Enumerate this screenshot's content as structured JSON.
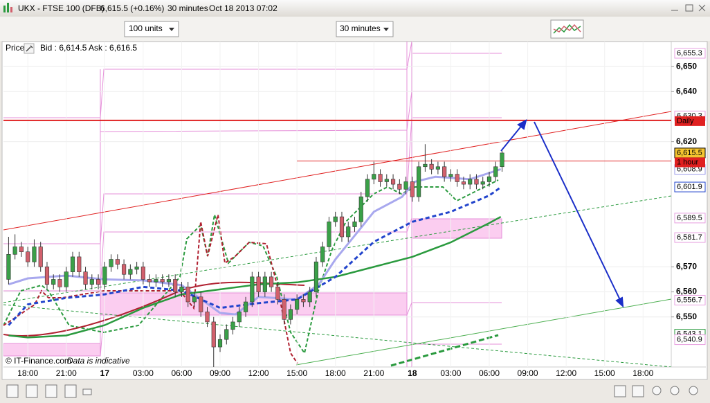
{
  "window": {
    "title": "UKX - FTSE 100 (DFB)",
    "price": "6,615.5 (+0.16%)",
    "interval": "30 minutes",
    "timestamp": "Oct 18 2013 07:02"
  },
  "toolbar": {
    "units": "100 units",
    "period": "30 minutes"
  },
  "panel": {
    "label": "Price",
    "quote": "Bid : 6,614.5 Ask : 6,616.5",
    "copyright": "© IT-Finance.com",
    "disclaimer": "Data is indicative"
  },
  "chart_data": {
    "type": "candlestick",
    "x": [
      -1.5,
      -1,
      -0.5,
      0,
      0.5,
      1,
      1.5,
      2,
      2.5,
      3,
      3.5,
      4,
      4.5,
      5,
      5.5,
      6,
      6.5,
      7,
      7.5,
      8,
      8.5,
      9,
      9.5,
      10,
      10.5,
      11,
      11.5,
      12,
      12.5,
      13,
      13.5,
      14,
      14.5,
      15,
      15.5,
      16,
      16.5,
      17,
      17.5,
      18,
      18.5,
      19,
      19.5,
      20,
      20.5,
      21,
      21.5,
      22,
      22.5,
      23,
      23.5,
      24,
      24.5,
      25,
      25.5,
      26,
      26.5,
      27,
      27.5,
      28,
      28.5,
      29,
      29.5,
      30,
      30.5,
      31,
      31.5,
      32,
      32.5,
      33,
      33.5,
      34,
      34.5,
      35,
      35.5,
      36,
      36.5,
      37
    ],
    "open": [
      6565,
      6575,
      6578,
      6576,
      6572,
      6578,
      6570,
      6563,
      6565,
      6562,
      6568,
      6574,
      6568,
      6563,
      6565,
      6563,
      6570,
      6573,
      6571,
      6567,
      6569,
      6570,
      6565,
      6564,
      6565,
      6564,
      6565,
      6560,
      6562,
      6556,
      6558,
      6552,
      6548,
      6538,
      6541,
      6545,
      6548,
      6552,
      6556,
      6566,
      6560,
      6566,
      6562,
      6557,
      6549,
      6553,
      6557,
      6556,
      6560,
      6572,
      6578,
      6588,
      6590,
      6582,
      6586,
      6588,
      6598,
      6605,
      6607,
      6604,
      6605,
      6603,
      6601,
      6604,
      6598,
      6610,
      6611,
      6609,
      6610,
      6606,
      6607,
      6604,
      6603,
      6605,
      6603,
      6604,
      6606,
      6610
    ],
    "high": [
      6582,
      6583,
      6580,
      6578,
      6581,
      6580,
      6572,
      6567,
      6567,
      6570,
      6576,
      6576,
      6570,
      6567,
      6567,
      6572,
      6575,
      6575,
      6573,
      6571,
      6572,
      6572,
      6567,
      6567,
      6567,
      6567,
      6567,
      6564,
      6564,
      6560,
      6560,
      6554,
      6550,
      6543,
      6547,
      6550,
      6554,
      6558,
      6568,
      6568,
      6568,
      6568,
      6564,
      6559,
      6555,
      6559,
      6559,
      6562,
      6574,
      6580,
      6590,
      6592,
      6592,
      6588,
      6590,
      6600,
      6607,
      6612,
      6609,
      6607,
      6607,
      6605,
      6606,
      6606,
      6612,
      6619,
      6613,
      6612,
      6612,
      6609,
      6609,
      6606,
      6607,
      6607,
      6606,
      6608,
      6612,
      6617
    ],
    "low": [
      6563,
      6573,
      6574,
      6570,
      6570,
      6568,
      6561,
      6561,
      6560,
      6560,
      6566,
      6566,
      6561,
      6561,
      6561,
      6561,
      6568,
      6569,
      6565,
      6565,
      6567,
      6563,
      6562,
      6562,
      6562,
      6562,
      6558,
      6558,
      6554,
      6554,
      6550,
      6546,
      6530,
      6536,
      6539,
      6543,
      6546,
      6550,
      6554,
      6558,
      6558,
      6560,
      6555,
      6547,
      6547,
      6551,
      6554,
      6554,
      6558,
      6570,
      6576,
      6586,
      6580,
      6580,
      6584,
      6586,
      6596,
      6603,
      6602,
      6602,
      6601,
      6599,
      6599,
      6596,
      6596,
      6608,
      6607,
      6607,
      6604,
      6604,
      6602,
      6601,
      6601,
      6601,
      6601,
      6602,
      6604,
      6608
    ],
    "close": [
      6575,
      6578,
      6576,
      6572,
      6578,
      6570,
      6563,
      6565,
      6562,
      6568,
      6574,
      6568,
      6563,
      6565,
      6563,
      6570,
      6573,
      6571,
      6567,
      6569,
      6570,
      6565,
      6564,
      6565,
      6564,
      6565,
      6560,
      6562,
      6556,
      6558,
      6552,
      6548,
      6538,
      6541,
      6545,
      6548,
      6552,
      6556,
      6566,
      6560,
      6566,
      6562,
      6557,
      6549,
      6553,
      6557,
      6556,
      6560,
      6572,
      6578,
      6588,
      6590,
      6582,
      6586,
      6588,
      6598,
      6605,
      6607,
      6604,
      6605,
      6603,
      6601,
      6604,
      6598,
      6610,
      6611,
      6609,
      6610,
      6606,
      6607,
      6604,
      6603,
      6605,
      6603,
      6604,
      6606,
      6610,
      6615.5
    ],
    "up_color": "#3aa048",
    "down_color": "#d2606c",
    "xlim": [
      -1.9,
      50.2
    ],
    "ylim": [
      6530,
      6660
    ],
    "xticks": [
      {
        "value": 0,
        "label": "18:00"
      },
      {
        "value": 3,
        "label": "21:00"
      },
      {
        "value": 6,
        "label": "17"
      },
      {
        "value": 9,
        "label": "03:00"
      },
      {
        "value": 12,
        "label": "06:00"
      },
      {
        "value": 15,
        "label": "09:00"
      },
      {
        "value": 18,
        "label": "12:00"
      },
      {
        "value": 21,
        "label": "15:00"
      },
      {
        "value": 24,
        "label": "18:00"
      },
      {
        "value": 27,
        "label": "21:00"
      },
      {
        "value": 30,
        "label": "18"
      },
      {
        "value": 33,
        "label": "03:00"
      },
      {
        "value": 36,
        "label": "06:00"
      },
      {
        "value": 39,
        "label": "09:00"
      },
      {
        "value": 42,
        "label": "12:00"
      },
      {
        "value": 45,
        "label": "15:00"
      },
      {
        "value": 48,
        "label": "18:00"
      }
    ],
    "yticks": [
      {
        "value": 6650,
        "label": "6,650"
      },
      {
        "value": 6640,
        "label": "6,640"
      },
      {
        "value": 6620,
        "label": "6,620"
      },
      {
        "value": 6570,
        "label": "6,570"
      },
      {
        "value": 6560,
        "label": "6,560"
      },
      {
        "value": 6550,
        "label": "6,550"
      }
    ],
    "indicators": [
      {
        "color": "#a8a8ee",
        "width": 3,
        "dash": "none",
        "x": [
          -1.5,
          0,
          3,
          6,
          9,
          12,
          15,
          16.2,
          18,
          21,
          22.7,
          24,
          25.9,
          27,
          29.2,
          30.2,
          31.8,
          34.5,
          36.9
        ],
        "values": [
          6563,
          6565.4,
          6566.5,
          6565,
          6564.6,
          6562.7,
          6551.6,
          6551,
          6558,
          6557,
          6563,
          6573,
          6585,
          6592,
          6598,
          6604,
          6606,
          6605,
          6609
        ]
      },
      {
        "color": "#2a9a3e",
        "width": 2.5,
        "dash": "none",
        "x": [
          -1.5,
          0,
          3,
          6,
          9,
          12,
          15,
          18,
          21,
          24,
          27,
          30,
          33,
          36,
          36.9
        ],
        "values": [
          6542.6,
          6541.8,
          6542.6,
          6546.7,
          6553.6,
          6559,
          6561,
          6563,
          6563.8,
          6566,
          6570,
          6574,
          6579.8,
          6587.5,
          6590
        ]
      },
      {
        "color": "#2244cc",
        "width": 3,
        "dash": "6 4",
        "x": [
          -1.5,
          0,
          3,
          6,
          9,
          12,
          15,
          18,
          21,
          24,
          27,
          30,
          33,
          36,
          36.9
        ],
        "values": [
          6546.7,
          6555,
          6557.6,
          6559,
          6562,
          6560.5,
          6553.6,
          6555.5,
          6557,
          6566,
          6580,
          6588,
          6592,
          6598.5,
          6601.8
        ]
      }
    ],
    "levels": [
      {
        "label": "Daily",
        "value": 6628.5,
        "from": -1.9,
        "width": 2
      },
      {
        "label": "1 hour",
        "value": 6612.3,
        "from": 21,
        "width": 1
      }
    ],
    "level_color": "#e02020",
    "price_tags": [
      {
        "value": 6655.3,
        "label": "6,655.3",
        "color": "#e7a0e0",
        "background": "#ffffff"
      },
      {
        "value": 6630.3,
        "label": "6,630.3",
        "color": "#e7a0e0",
        "background": "#ffffff"
      },
      {
        "value": 6615.5,
        "label": "6,615.5",
        "color": "#000000",
        "background": "#f4c430"
      },
      {
        "value": 6608.9,
        "label": "6,608.9",
        "color": "#9a9ae8",
        "background": "#ffffff"
      },
      {
        "value": 6601.9,
        "label": "6,601.9",
        "color": "#2244cc",
        "background": "#ffffff"
      },
      {
        "value": 6589.5,
        "label": "6,589.5",
        "color": "#e7a0e0",
        "background": "#ffffff"
      },
      {
        "value": 6581.7,
        "label": "6,581.7",
        "color": "#e7a0e0",
        "background": "#ffffff"
      },
      {
        "value": 6556.7,
        "label": "6,556.7",
        "color": "#e7a0e0",
        "background": "#ffffff"
      },
      {
        "value": 6543.1,
        "label": "6,543.1",
        "color": "#2a9a3e",
        "background": "#ffffff"
      },
      {
        "value": 6540.9,
        "label": "6,540.9",
        "color": "#e7a0e0",
        "background": "#ffffff"
      }
    ]
  }
}
